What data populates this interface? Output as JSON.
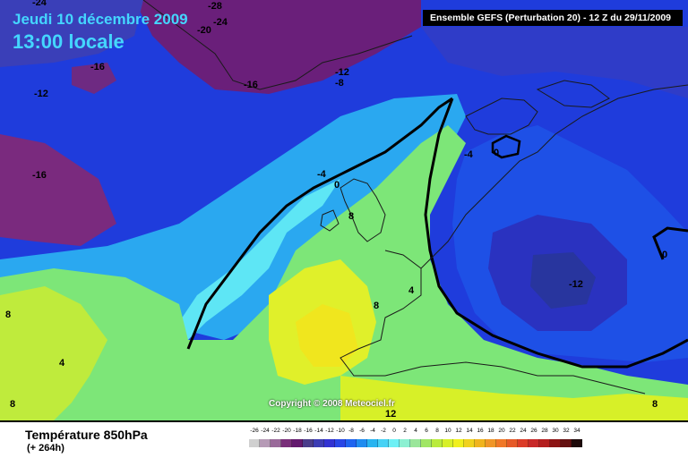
{
  "header": {
    "date": "Jeudi 10 décembre 2009",
    "time": "13:00 locale",
    "run_info": "Ensemble GEFS (Perturbation 20)  -  12 Z du 29/11/2009"
  },
  "map": {
    "copyright": "Copyright © 2008 Meteociel.fr",
    "isotherm_labels": [
      {
        "id": "m24-a",
        "text": "-24"
      },
      {
        "id": "m28",
        "text": "-28"
      },
      {
        "id": "m24-b",
        "text": "-24"
      },
      {
        "id": "m20",
        "text": "-20"
      },
      {
        "id": "m16-a",
        "text": "-16"
      },
      {
        "id": "m12-a",
        "text": "-12"
      },
      {
        "id": "m12-b",
        "text": "-12"
      },
      {
        "id": "m8",
        "text": "-8"
      },
      {
        "id": "m16-b",
        "text": "-16"
      },
      {
        "id": "m16-c",
        "text": "-16"
      },
      {
        "id": "m4-a",
        "text": "-4"
      },
      {
        "id": "z0-a",
        "text": "0"
      },
      {
        "id": "m4-b",
        "text": "-4"
      },
      {
        "id": "z0-b",
        "text": "0"
      },
      {
        "id": "p8-a",
        "text": "8"
      },
      {
        "id": "p4-a",
        "text": "4"
      },
      {
        "id": "p8-b",
        "text": "8"
      },
      {
        "id": "p8-c",
        "text": "8"
      },
      {
        "id": "p4-b",
        "text": "4"
      },
      {
        "id": "p8-d",
        "text": "8"
      },
      {
        "id": "m12-c",
        "text": "-12"
      },
      {
        "id": "z0-c",
        "text": "0"
      },
      {
        "id": "p8-e",
        "text": "8"
      },
      {
        "id": "p12",
        "text": "12"
      }
    ]
  },
  "footer": {
    "title": "Température 850hPa",
    "subtitle": "(+ 264h)"
  },
  "legend": {
    "labels": [
      "-26",
      "-24",
      "-22",
      "-20",
      "-18",
      "-16",
      "-14",
      "-12",
      "-10",
      "-8",
      "-6",
      "-4",
      "-2",
      "0",
      "2",
      "4",
      "6",
      "8",
      "10",
      "12",
      "14",
      "16",
      "18",
      "20",
      "22",
      "24",
      "26",
      "28",
      "30",
      "32",
      "34"
    ],
    "colors": [
      "#d0d0d0",
      "#b69ab6",
      "#9a6a9a",
      "#7a2f7a",
      "#64196e",
      "#4a3c8a",
      "#3c3cb4",
      "#3232d2",
      "#2846e6",
      "#1e64f0",
      "#1e8cf0",
      "#28b4f0",
      "#46d2f5",
      "#6ef0f5",
      "#8cf0d2",
      "#9ae69a",
      "#a0e664",
      "#b9eb3c",
      "#d7f028",
      "#f0f01e",
      "#f0d21e",
      "#f0b41e",
      "#f09628",
      "#f07828",
      "#e65a28",
      "#dc3c28",
      "#c82828",
      "#b41e1e",
      "#8c1414",
      "#641010",
      "#1e0a0a"
    ]
  }
}
